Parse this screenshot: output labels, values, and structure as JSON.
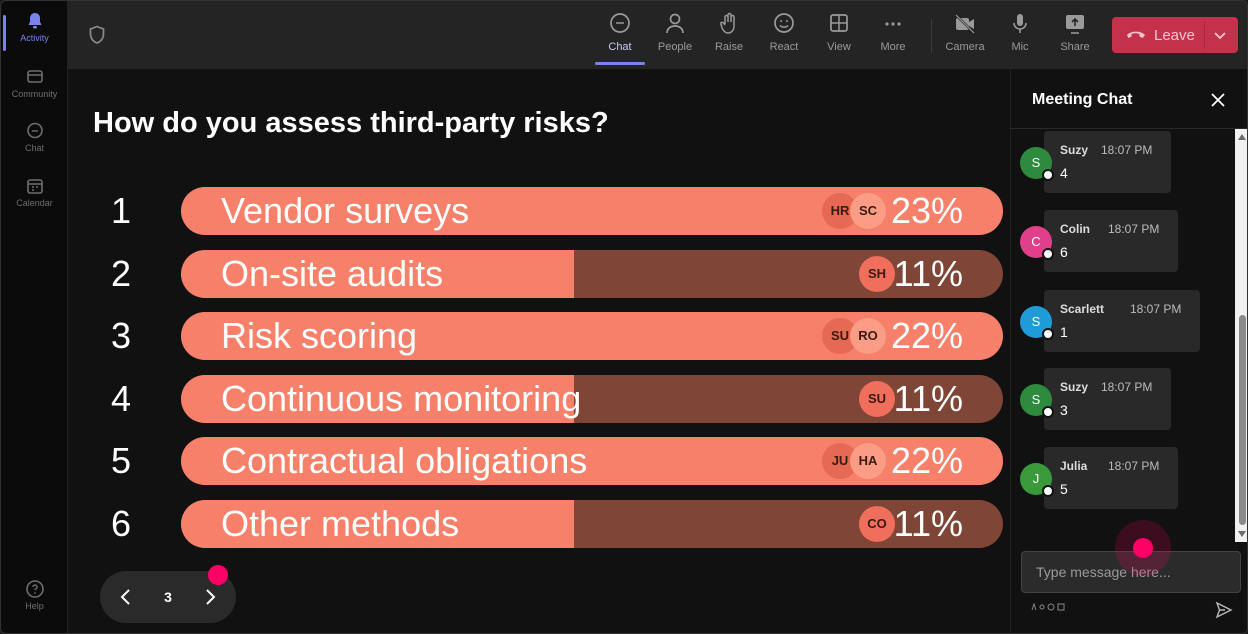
{
  "rail": {
    "items": [
      {
        "label": "Activity",
        "icon": "bell-icon",
        "active": true
      },
      {
        "label": "Community",
        "icon": "community-icon"
      },
      {
        "label": "Chat",
        "icon": "chat-icon"
      },
      {
        "label": "Calendar",
        "icon": "calendar-icon"
      }
    ],
    "help": {
      "label": "Help",
      "icon": "help-icon"
    }
  },
  "toolbar": {
    "chat": "Chat",
    "people": "People",
    "raise": "Raise",
    "react": "React",
    "view": "View",
    "more": "More",
    "camera": "Camera",
    "mic": "Mic",
    "share": "Share",
    "leave": "Leave"
  },
  "poll": {
    "question": "How do you assess third-party risks?",
    "options": [
      {
        "num": "1",
        "label": "Vendor surveys",
        "percent": 23,
        "percent_label": "23%",
        "avatars": [
          "HR",
          "SC"
        ]
      },
      {
        "num": "2",
        "label": "On-site audits",
        "percent": 11,
        "percent_label": "11%",
        "avatars": [
          "SH"
        ]
      },
      {
        "num": "3",
        "label": "Risk scoring",
        "percent": 22,
        "percent_label": "22%",
        "avatars": [
          "SU",
          "RO"
        ]
      },
      {
        "num": "4",
        "label": "Continuous monitoring",
        "percent": 11,
        "percent_label": "11%",
        "avatars": [
          "SU"
        ]
      },
      {
        "num": "5",
        "label": "Contractual obligations",
        "percent": 22,
        "percent_label": "22%",
        "avatars": [
          "JU",
          "HA"
        ]
      },
      {
        "num": "6",
        "label": "Other methods",
        "percent": 11,
        "percent_label": "11%",
        "avatars": [
          "CO"
        ]
      }
    ],
    "page": "3"
  },
  "chat": {
    "title": "Meeting Chat",
    "messages": [
      {
        "initial": "S",
        "name": "Suzy",
        "time": "18:07 PM",
        "text": "4",
        "color": "#2e8b3e"
      },
      {
        "initial": "C",
        "name": "Colin",
        "time": "18:07 PM",
        "text": "6",
        "color": "#e0408a"
      },
      {
        "initial": "S",
        "name": "Scarlett",
        "time": "18:07 PM",
        "text": "1",
        "color": "#1f9bd8"
      },
      {
        "initial": "S",
        "name": "Suzy",
        "time": "18:07 PM",
        "text": "3",
        "color": "#2e8b3e"
      },
      {
        "initial": "J",
        "name": "Julia",
        "time": "18:07 PM",
        "text": "5",
        "color": "#3a9a3a"
      }
    ],
    "placeholder": "Type message here..."
  }
}
